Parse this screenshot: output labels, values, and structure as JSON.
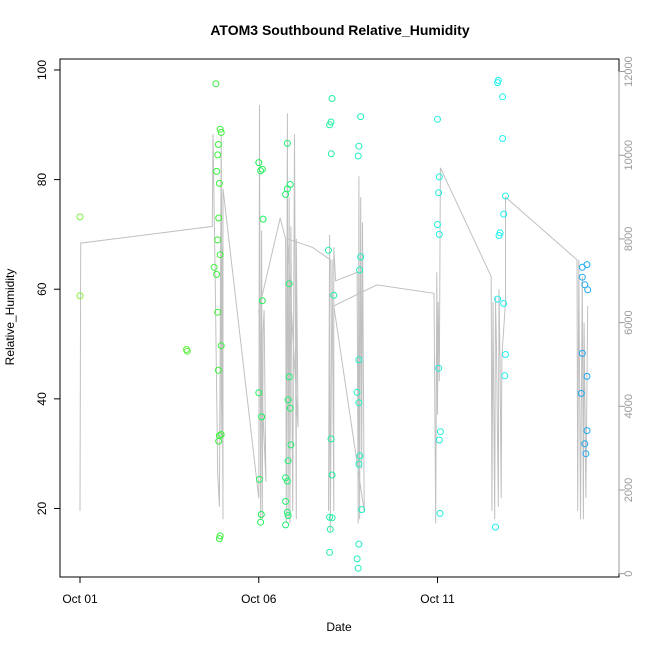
{
  "chart_data": {
    "type": "scatter",
    "title": "ATOM3 Southbound Relative_Humidity",
    "xlabel": "Date",
    "ylabel": "Relative_Humidity",
    "x_ticks": [
      "Oct 01",
      "Oct 06",
      "Oct 11"
    ],
    "y_ticks": [
      "20",
      "40",
      "60",
      "80",
      "100"
    ],
    "y2_ticks": [
      "0",
      "2000",
      "4000",
      "6000",
      "8000",
      "10000",
      "12000"
    ],
    "xlim": [
      0,
      14.6
    ],
    "ylim": [
      7.5,
      102
    ],
    "y2lim": [
      -80,
      12300
    ],
    "grid": false,
    "secondary_series_color": "#c0c0c0",
    "points": [
      {
        "x": 0.0,
        "y": 73.2,
        "c": "#7cf03a"
      },
      {
        "x": 0.0,
        "y": 58.8,
        "c": "#7cf03a"
      },
      {
        "x": 2.98,
        "y": 49.0,
        "c": "#5cf03a"
      },
      {
        "x": 3.0,
        "y": 48.7,
        "c": "#5cf03a"
      },
      {
        "x": 3.75,
        "y": 64.0,
        "c": "#3cf03a"
      },
      {
        "x": 3.8,
        "y": 97.5,
        "c": "#3cf03a"
      },
      {
        "x": 3.82,
        "y": 62.7,
        "c": "#3cf03a"
      },
      {
        "x": 3.85,
        "y": 84.5,
        "c": "#3cf03a"
      },
      {
        "x": 3.87,
        "y": 86.4,
        "c": "#3cf03a"
      },
      {
        "x": 3.82,
        "y": 81.5,
        "c": "#3cf03a"
      },
      {
        "x": 3.88,
        "y": 73.0,
        "c": "#3cf03a"
      },
      {
        "x": 3.85,
        "y": 69.0,
        "c": "#3cf03a"
      },
      {
        "x": 3.9,
        "y": 79.3,
        "c": "#3cf03a"
      },
      {
        "x": 3.92,
        "y": 89.2,
        "c": "#3cf03a"
      },
      {
        "x": 3.95,
        "y": 88.6,
        "c": "#3cf03a"
      },
      {
        "x": 3.92,
        "y": 66.3,
        "c": "#3cf03a"
      },
      {
        "x": 3.85,
        "y": 55.8,
        "c": "#3cf03a"
      },
      {
        "x": 3.95,
        "y": 49.7,
        "c": "#3cf03a"
      },
      {
        "x": 3.87,
        "y": 45.2,
        "c": "#3cf03a"
      },
      {
        "x": 3.9,
        "y": 33.3,
        "c": "#3cf03a"
      },
      {
        "x": 3.95,
        "y": 33.5,
        "c": "#3cf03a"
      },
      {
        "x": 3.88,
        "y": 32.3,
        "c": "#3cf03a"
      },
      {
        "x": 3.92,
        "y": 15.0,
        "c": "#3cf03a"
      },
      {
        "x": 3.9,
        "y": 14.5,
        "c": "#3cf03a"
      },
      {
        "x": 5.0,
        "y": 83.1,
        "c": "#20f05a"
      },
      {
        "x": 5.05,
        "y": 81.6,
        "c": "#20f05a"
      },
      {
        "x": 5.1,
        "y": 81.9,
        "c": "#20f05a"
      },
      {
        "x": 5.12,
        "y": 72.8,
        "c": "#20f05a"
      },
      {
        "x": 5.1,
        "y": 57.9,
        "c": "#20f05a"
      },
      {
        "x": 5.0,
        "y": 41.1,
        "c": "#20f05a"
      },
      {
        "x": 5.08,
        "y": 36.7,
        "c": "#20f05a"
      },
      {
        "x": 5.02,
        "y": 25.3,
        "c": "#20f05a"
      },
      {
        "x": 5.07,
        "y": 18.9,
        "c": "#20f05a"
      },
      {
        "x": 5.05,
        "y": 17.5,
        "c": "#20f05a"
      },
      {
        "x": 5.8,
        "y": 86.6,
        "c": "#20f070"
      },
      {
        "x": 5.88,
        "y": 79.1,
        "c": "#20f070"
      },
      {
        "x": 5.75,
        "y": 77.3,
        "c": "#20f070"
      },
      {
        "x": 5.8,
        "y": 78.3,
        "c": "#20f070"
      },
      {
        "x": 5.85,
        "y": 61.0,
        "c": "#20f070"
      },
      {
        "x": 5.85,
        "y": 44.0,
        "c": "#20f070"
      },
      {
        "x": 5.82,
        "y": 39.8,
        "c": "#20f070"
      },
      {
        "x": 5.88,
        "y": 38.3,
        "c": "#20f070"
      },
      {
        "x": 5.9,
        "y": 31.6,
        "c": "#20f070"
      },
      {
        "x": 5.82,
        "y": 28.7,
        "c": "#20f070"
      },
      {
        "x": 5.75,
        "y": 25.6,
        "c": "#20f070"
      },
      {
        "x": 5.8,
        "y": 25.0,
        "c": "#20f070"
      },
      {
        "x": 5.75,
        "y": 21.3,
        "c": "#20f070"
      },
      {
        "x": 5.8,
        "y": 19.3,
        "c": "#20f070"
      },
      {
        "x": 5.82,
        "y": 18.7,
        "c": "#20f070"
      },
      {
        "x": 5.75,
        "y": 17.0,
        "c": "#20f070"
      },
      {
        "x": 7.05,
        "y": 94.8,
        "c": "#20f0a0"
      },
      {
        "x": 7.02,
        "y": 90.5,
        "c": "#20f0a0"
      },
      {
        "x": 6.98,
        "y": 90.0,
        "c": "#20f0a0"
      },
      {
        "x": 7.03,
        "y": 84.7,
        "c": "#20f0a0"
      },
      {
        "x": 6.95,
        "y": 67.1,
        "c": "#20f0a0"
      },
      {
        "x": 7.1,
        "y": 58.9,
        "c": "#20f0a0"
      },
      {
        "x": 7.02,
        "y": 32.7,
        "c": "#20f0a0"
      },
      {
        "x": 7.05,
        "y": 26.1,
        "c": "#20f0a0"
      },
      {
        "x": 6.98,
        "y": 18.4,
        "c": "#20f0a0"
      },
      {
        "x": 7.05,
        "y": 18.3,
        "c": "#20f0a0"
      },
      {
        "x": 7.0,
        "y": 16.2,
        "c": "#20f0a0"
      },
      {
        "x": 6.98,
        "y": 12.0,
        "c": "#20f0a0"
      },
      {
        "x": 7.85,
        "y": 91.5,
        "c": "#20f0c0"
      },
      {
        "x": 7.8,
        "y": 86.1,
        "c": "#20f0c0"
      },
      {
        "x": 7.78,
        "y": 84.3,
        "c": "#20f0c0"
      },
      {
        "x": 7.85,
        "y": 65.9,
        "c": "#20f0c0"
      },
      {
        "x": 7.82,
        "y": 63.5,
        "c": "#20f0c0"
      },
      {
        "x": 7.8,
        "y": 47.1,
        "c": "#20f0c0"
      },
      {
        "x": 7.75,
        "y": 41.2,
        "c": "#20f0c0"
      },
      {
        "x": 7.8,
        "y": 39.3,
        "c": "#20f0c0"
      },
      {
        "x": 7.83,
        "y": 29.6,
        "c": "#20f0c0"
      },
      {
        "x": 7.8,
        "y": 28.1,
        "c": "#20f0c0"
      },
      {
        "x": 7.88,
        "y": 19.8,
        "c": "#20f0c0"
      },
      {
        "x": 7.8,
        "y": 13.5,
        "c": "#20f0c0"
      },
      {
        "x": 7.75,
        "y": 10.8,
        "c": "#20f0c0"
      },
      {
        "x": 7.78,
        "y": 9.1,
        "c": "#20f0c0"
      },
      {
        "x": 10.0,
        "y": 91.0,
        "c": "#20f0e0"
      },
      {
        "x": 10.05,
        "y": 80.5,
        "c": "#20f0e0"
      },
      {
        "x": 10.03,
        "y": 77.6,
        "c": "#20f0e0"
      },
      {
        "x": 10.0,
        "y": 71.8,
        "c": "#20f0e0"
      },
      {
        "x": 10.05,
        "y": 70.0,
        "c": "#20f0e0"
      },
      {
        "x": 10.03,
        "y": 45.6,
        "c": "#20f0e0"
      },
      {
        "x": 10.08,
        "y": 34.0,
        "c": "#20f0e0"
      },
      {
        "x": 10.05,
        "y": 32.5,
        "c": "#20f0e0"
      },
      {
        "x": 10.07,
        "y": 19.1,
        "c": "#20f0e0"
      },
      {
        "x": 11.7,
        "y": 98.1,
        "c": "#20f0f0"
      },
      {
        "x": 11.68,
        "y": 97.7,
        "c": "#20f0f0"
      },
      {
        "x": 11.82,
        "y": 95.1,
        "c": "#20f0f0"
      },
      {
        "x": 11.82,
        "y": 87.5,
        "c": "#20f0f0"
      },
      {
        "x": 11.9,
        "y": 77.0,
        "c": "#20f0f0"
      },
      {
        "x": 11.85,
        "y": 73.7,
        "c": "#20f0f0"
      },
      {
        "x": 11.75,
        "y": 70.3,
        "c": "#20f0f0"
      },
      {
        "x": 11.72,
        "y": 69.8,
        "c": "#20f0f0"
      },
      {
        "x": 11.68,
        "y": 58.2,
        "c": "#20f0f0"
      },
      {
        "x": 11.85,
        "y": 57.4,
        "c": "#20f0f0"
      },
      {
        "x": 11.9,
        "y": 48.1,
        "c": "#20f0f0"
      },
      {
        "x": 11.88,
        "y": 44.2,
        "c": "#20f0f0"
      },
      {
        "x": 11.62,
        "y": 16.6,
        "c": "#20f0f0"
      },
      {
        "x": 14.05,
        "y": 64.0,
        "c": "#20a8f0"
      },
      {
        "x": 14.18,
        "y": 64.5,
        "c": "#20a8f0"
      },
      {
        "x": 14.05,
        "y": 62.2,
        "c": "#20a8f0"
      },
      {
        "x": 14.12,
        "y": 60.8,
        "c": "#20a8f0"
      },
      {
        "x": 14.2,
        "y": 59.9,
        "c": "#20a8f0"
      },
      {
        "x": 14.05,
        "y": 48.3,
        "c": "#20a8f0"
      },
      {
        "x": 14.18,
        "y": 44.1,
        "c": "#20a8f0"
      },
      {
        "x": 14.02,
        "y": 41.0,
        "c": "#20a8f0"
      },
      {
        "x": 14.18,
        "y": 34.2,
        "c": "#20a8f0"
      },
      {
        "x": 14.12,
        "y": 31.8,
        "c": "#20a8f0"
      },
      {
        "x": 14.15,
        "y": 30.0,
        "c": "#20a8f0"
      }
    ],
    "secondary_series": [
      [
        0.0,
        1500
      ],
      [
        0.02,
        7900
      ],
      [
        3.7,
        8300
      ],
      [
        3.72,
        10500
      ],
      [
        3.78,
        7200
      ],
      [
        3.85,
        2400
      ],
      [
        3.9,
        1600
      ],
      [
        3.95,
        10500
      ],
      [
        4.0,
        1300
      ],
      [
        3.98,
        7800
      ],
      [
        3.95,
        3200
      ],
      [
        3.95,
        9300
      ],
      [
        4.0,
        2000
      ],
      [
        4.0,
        9200
      ],
      [
        5.0,
        1800
      ],
      [
        5.02,
        11200
      ],
      [
        5.05,
        1300
      ],
      [
        5.08,
        8200
      ],
      [
        5.1,
        1300
      ],
      [
        5.12,
        5800
      ],
      [
        5.15,
        6300
      ],
      [
        5.2,
        2200
      ],
      [
        5.0,
        6300
      ],
      [
        5.6,
        8500
      ],
      [
        5.75,
        8000
      ],
      [
        5.77,
        1200
      ],
      [
        5.8,
        11000
      ],
      [
        5.82,
        1300
      ],
      [
        5.85,
        9000
      ],
      [
        5.87,
        1200
      ],
      [
        5.9,
        8300
      ],
      [
        5.95,
        1500
      ],
      [
        6.0,
        10500
      ],
      [
        6.05,
        1300
      ],
      [
        6.05,
        8000
      ],
      [
        6.1,
        3500
      ],
      [
        5.8,
        8000
      ],
      [
        6.5,
        7800
      ],
      [
        7.0,
        7500
      ],
      [
        6.95,
        1500
      ],
      [
        6.98,
        8100
      ],
      [
        7.0,
        1000
      ],
      [
        7.05,
        7500
      ],
      [
        7.1,
        1500
      ],
      [
        7.1,
        7800
      ],
      [
        7.15,
        7000
      ],
      [
        7.75,
        7200
      ],
      [
        7.78,
        1200
      ],
      [
        7.8,
        9500
      ],
      [
        7.82,
        1300
      ],
      [
        7.85,
        9000
      ],
      [
        7.88,
        2500
      ],
      [
        7.9,
        8400
      ],
      [
        7.95,
        1500
      ],
      [
        7.1,
        6400
      ],
      [
        8.3,
        6900
      ],
      [
        9.9,
        6700
      ],
      [
        9.95,
        1200
      ],
      [
        9.98,
        7200
      ],
      [
        10.0,
        3800
      ],
      [
        10.02,
        6500
      ],
      [
        10.05,
        4600
      ],
      [
        10.08,
        9700
      ],
      [
        11.5,
        7100
      ],
      [
        11.52,
        1500
      ],
      [
        11.55,
        6500
      ],
      [
        11.6,
        1300
      ],
      [
        11.62,
        6600
      ],
      [
        11.65,
        5400
      ],
      [
        11.7,
        1600
      ],
      [
        11.72,
        6800
      ],
      [
        11.75,
        5000
      ],
      [
        11.78,
        1800
      ],
      [
        11.8,
        5200
      ],
      [
        11.9,
        6500
      ],
      [
        11.9,
        9000
      ],
      [
        13.9,
        7500
      ],
      [
        13.92,
        1500
      ],
      [
        13.95,
        7500
      ],
      [
        14.0,
        1300
      ],
      [
        14.05,
        7100
      ],
      [
        14.08,
        1300
      ],
      [
        14.1,
        6000
      ],
      [
        14.15,
        1800
      ],
      [
        14.2,
        6400
      ]
    ]
  }
}
